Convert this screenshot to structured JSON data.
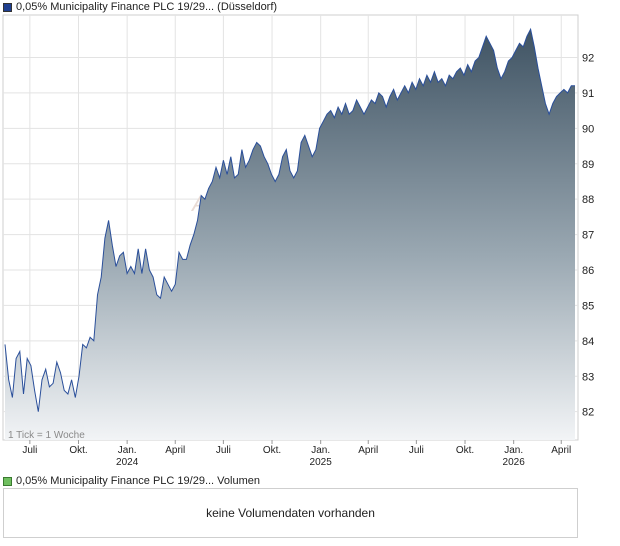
{
  "legend": {
    "price_label": "0,05% Municipality Finance PLC 19/29... (Düsseldorf)",
    "volume_label": "0,05% Municipality Finance PLC 19/29... Volumen",
    "price_color": "#1f3f8f",
    "volume_color": "#6fbf5f"
  },
  "volume": {
    "message": "keine Volumendaten vorhanden"
  },
  "chart_data": {
    "type": "area",
    "title": "",
    "xlabel": "",
    "ylabel": "",
    "tick_note": "1 Tick = 1 Woche",
    "watermark": "AKTI",
    "ylim": [
      81,
      93
    ],
    "xlim": [
      "2023-05-15",
      "2026-04-27"
    ],
    "grid": true,
    "y_ticks": [
      82,
      83,
      84,
      85,
      86,
      87,
      88,
      89,
      90,
      91,
      92
    ],
    "x_ticks": [
      {
        "label": "Juli",
        "date": "2023-07-01"
      },
      {
        "label": "Okt.",
        "date": "2023-10-01"
      },
      {
        "label": "Jan.",
        "date": "2024-01-01",
        "year": "2024"
      },
      {
        "label": "April",
        "date": "2024-04-01"
      },
      {
        "label": "Juli",
        "date": "2024-07-01"
      },
      {
        "label": "Okt.",
        "date": "2024-10-01"
      },
      {
        "label": "Jan.",
        "date": "2025-01-01",
        "year": "2025"
      },
      {
        "label": "April",
        "date": "2025-04-01"
      },
      {
        "label": "Juli",
        "date": "2025-07-01"
      },
      {
        "label": "Okt.",
        "date": "2025-10-01"
      },
      {
        "label": "Jan.",
        "date": "2026-01-01",
        "year": "2026"
      },
      {
        "label": "April",
        "date": "2026-04-01"
      }
    ],
    "series": [
      {
        "values": [
          [
            "2023-05-15",
            83.9
          ],
          [
            "2023-05-22",
            82.9
          ],
          [
            "2023-05-29",
            82.4
          ],
          [
            "2023-06-05",
            83.5
          ],
          [
            "2023-06-12",
            83.7
          ],
          [
            "2023-06-19",
            82.5
          ],
          [
            "2023-06-26",
            83.5
          ],
          [
            "2023-07-03",
            83.3
          ],
          [
            "2023-07-10",
            82.6
          ],
          [
            "2023-07-17",
            82.0
          ],
          [
            "2023-07-24",
            82.9
          ],
          [
            "2023-07-31",
            83.2
          ],
          [
            "2023-08-07",
            82.7
          ],
          [
            "2023-08-14",
            82.8
          ],
          [
            "2023-08-21",
            83.4
          ],
          [
            "2023-08-28",
            83.1
          ],
          [
            "2023-09-04",
            82.6
          ],
          [
            "2023-09-11",
            82.5
          ],
          [
            "2023-09-18",
            82.9
          ],
          [
            "2023-09-25",
            82.4
          ],
          [
            "2023-10-02",
            83.0
          ],
          [
            "2023-10-09",
            83.9
          ],
          [
            "2023-10-16",
            83.8
          ],
          [
            "2023-10-23",
            84.1
          ],
          [
            "2023-10-30",
            84.0
          ],
          [
            "2023-11-06",
            85.3
          ],
          [
            "2023-11-13",
            85.8
          ],
          [
            "2023-11-20",
            86.9
          ],
          [
            "2023-11-27",
            87.4
          ],
          [
            "2023-12-04",
            86.7
          ],
          [
            "2023-12-11",
            86.1
          ],
          [
            "2023-12-18",
            86.4
          ],
          [
            "2023-12-25",
            86.5
          ],
          [
            "2024-01-01",
            85.9
          ],
          [
            "2024-01-08",
            86.1
          ],
          [
            "2024-01-15",
            85.9
          ],
          [
            "2024-01-22",
            86.6
          ],
          [
            "2024-01-29",
            85.9
          ],
          [
            "2024-02-05",
            86.6
          ],
          [
            "2024-02-12",
            86.0
          ],
          [
            "2024-02-19",
            85.8
          ],
          [
            "2024-02-26",
            85.3
          ],
          [
            "2024-03-04",
            85.2
          ],
          [
            "2024-03-11",
            85.8
          ],
          [
            "2024-03-18",
            85.6
          ],
          [
            "2024-03-25",
            85.4
          ],
          [
            "2024-04-01",
            85.6
          ],
          [
            "2024-04-08",
            86.5
          ],
          [
            "2024-04-15",
            86.3
          ],
          [
            "2024-04-22",
            86.3
          ],
          [
            "2024-04-29",
            86.7
          ],
          [
            "2024-05-06",
            87.0
          ],
          [
            "2024-05-13",
            87.4
          ],
          [
            "2024-05-20",
            88.1
          ],
          [
            "2024-05-27",
            88.0
          ],
          [
            "2024-06-03",
            88.3
          ],
          [
            "2024-06-10",
            88.5
          ],
          [
            "2024-06-17",
            88.9
          ],
          [
            "2024-06-24",
            88.6
          ],
          [
            "2024-07-01",
            89.1
          ],
          [
            "2024-07-08",
            88.7
          ],
          [
            "2024-07-15",
            89.2
          ],
          [
            "2024-07-22",
            88.6
          ],
          [
            "2024-07-29",
            88.7
          ],
          [
            "2024-08-05",
            89.4
          ],
          [
            "2024-08-12",
            88.9
          ],
          [
            "2024-08-19",
            89.1
          ],
          [
            "2024-08-26",
            89.4
          ],
          [
            "2024-09-02",
            89.6
          ],
          [
            "2024-09-09",
            89.5
          ],
          [
            "2024-09-16",
            89.2
          ],
          [
            "2024-09-23",
            89.0
          ],
          [
            "2024-09-30",
            88.7
          ],
          [
            "2024-10-07",
            88.5
          ],
          [
            "2024-10-14",
            88.7
          ],
          [
            "2024-10-21",
            89.2
          ],
          [
            "2024-10-28",
            89.4
          ],
          [
            "2024-11-04",
            88.8
          ],
          [
            "2024-11-11",
            88.6
          ],
          [
            "2024-11-18",
            88.8
          ],
          [
            "2024-11-25",
            89.6
          ],
          [
            "2024-12-02",
            89.8
          ],
          [
            "2024-12-09",
            89.5
          ],
          [
            "2024-12-16",
            89.2
          ],
          [
            "2024-12-23",
            89.4
          ],
          [
            "2024-12-30",
            90.0
          ],
          [
            "2025-01-06",
            90.2
          ],
          [
            "2025-01-13",
            90.4
          ],
          [
            "2025-01-20",
            90.5
          ],
          [
            "2025-01-27",
            90.3
          ],
          [
            "2025-02-03",
            90.6
          ],
          [
            "2025-02-10",
            90.4
          ],
          [
            "2025-02-17",
            90.7
          ],
          [
            "2025-02-24",
            90.4
          ],
          [
            "2025-03-03",
            90.5
          ],
          [
            "2025-03-10",
            90.8
          ],
          [
            "2025-03-17",
            90.6
          ],
          [
            "2025-03-24",
            90.4
          ],
          [
            "2025-03-31",
            90.6
          ],
          [
            "2025-04-07",
            90.8
          ],
          [
            "2025-04-14",
            90.7
          ],
          [
            "2025-04-21",
            91.0
          ],
          [
            "2025-04-28",
            90.9
          ],
          [
            "2025-05-05",
            90.6
          ],
          [
            "2025-05-12",
            90.9
          ],
          [
            "2025-05-19",
            91.1
          ],
          [
            "2025-05-26",
            90.8
          ],
          [
            "2025-06-02",
            91.0
          ],
          [
            "2025-06-09",
            91.2
          ],
          [
            "2025-06-16",
            91.0
          ],
          [
            "2025-06-23",
            91.3
          ],
          [
            "2025-06-30",
            91.1
          ],
          [
            "2025-07-07",
            91.4
          ],
          [
            "2025-07-14",
            91.2
          ],
          [
            "2025-07-21",
            91.5
          ],
          [
            "2025-07-28",
            91.3
          ],
          [
            "2025-08-04",
            91.6
          ],
          [
            "2025-08-11",
            91.3
          ],
          [
            "2025-08-18",
            91.4
          ],
          [
            "2025-08-25",
            91.2
          ],
          [
            "2025-09-01",
            91.5
          ],
          [
            "2025-09-08",
            91.4
          ],
          [
            "2025-09-15",
            91.6
          ],
          [
            "2025-09-22",
            91.7
          ],
          [
            "2025-09-29",
            91.5
          ],
          [
            "2025-10-06",
            91.8
          ],
          [
            "2025-10-13",
            91.6
          ],
          [
            "2025-10-20",
            91.9
          ],
          [
            "2025-10-27",
            92.0
          ],
          [
            "2025-11-03",
            92.3
          ],
          [
            "2025-11-10",
            92.6
          ],
          [
            "2025-11-17",
            92.4
          ],
          [
            "2025-11-24",
            92.2
          ],
          [
            "2025-12-01",
            91.7
          ],
          [
            "2025-12-08",
            91.4
          ],
          [
            "2025-12-15",
            91.6
          ],
          [
            "2025-12-22",
            91.9
          ],
          [
            "2025-12-29",
            92.0
          ],
          [
            "2026-01-05",
            92.2
          ],
          [
            "2026-01-12",
            92.4
          ],
          [
            "2026-01-19",
            92.3
          ],
          [
            "2026-01-26",
            92.6
          ],
          [
            "2026-02-02",
            92.8
          ],
          [
            "2026-02-09",
            92.3
          ],
          [
            "2026-02-16",
            91.7
          ],
          [
            "2026-02-23",
            91.2
          ],
          [
            "2026-03-02",
            90.7
          ],
          [
            "2026-03-09",
            90.4
          ],
          [
            "2026-03-16",
            90.7
          ],
          [
            "2026-03-23",
            90.9
          ],
          [
            "2026-03-30",
            91.0
          ],
          [
            "2026-04-06",
            91.1
          ],
          [
            "2026-04-13",
            91.0
          ],
          [
            "2026-04-20",
            91.2
          ],
          [
            "2026-04-27",
            91.2
          ]
        ]
      }
    ]
  }
}
